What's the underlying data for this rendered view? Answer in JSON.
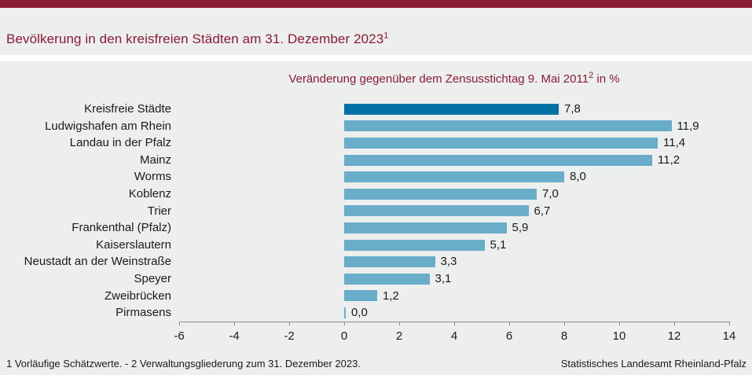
{
  "colors": {
    "accent_maroon": "#8b1b33",
    "band_gray": "#edeeee",
    "axis_gray": "#8c8c8c",
    "text_black": "#1a1a1a"
  },
  "header": {
    "title_text": "Bevölkerung in den kreisfreien Städten am 31. Dezember 2023",
    "title_superscript": "1"
  },
  "subtitle": {
    "part1": "Veränderung gegenüber dem Zensusstichtag 9. Mai 2011",
    "superscript": "2",
    "part2": " in %"
  },
  "chart_data": {
    "type": "bar",
    "orientation": "horizontal",
    "title": "Bevölkerung in den kreisfreien Städten am 31. Dezember 2023",
    "subtitle": "Veränderung gegenüber dem Zensusstichtag 9. Mai 2011 in %",
    "categories": [
      "Kreisfreie Städte",
      "Ludwigshafen am Rhein",
      "Landau in der Pfalz",
      "Mainz",
      "Worms",
      "Koblenz",
      "Trier",
      "Frankenthal (Pfalz)",
      "Kaiserslautern",
      "Neustadt an der Weinstraße",
      "Speyer",
      "Zweibrücken",
      "Pirmasens"
    ],
    "values": [
      7.8,
      11.9,
      11.4,
      11.2,
      8.0,
      7.0,
      6.7,
      5.9,
      5.1,
      3.3,
      3.1,
      1.2,
      0.0
    ],
    "value_labels": [
      "7,8",
      "11,9",
      "11,4",
      "11,2",
      "8,0",
      "7,0",
      "6,7",
      "5,9",
      "5,1",
      "3,3",
      "3,1",
      "1,2",
      "0,0"
    ],
    "highlight_index": 0,
    "bar_color": "#69adca",
    "highlight_color": "#0072a6",
    "xlim": [
      -6,
      14
    ],
    "xticks": [
      -6,
      -4,
      -2,
      0,
      2,
      4,
      6,
      8,
      10,
      12,
      14
    ],
    "grid": false,
    "legend": false
  },
  "footer": {
    "note": "1 Vorläufige Schätzwerte. - 2 Verwaltungsgliederung zum 31. Dezember 2023.",
    "source": "Statistisches Landesamt Rheinland-Pfalz"
  }
}
